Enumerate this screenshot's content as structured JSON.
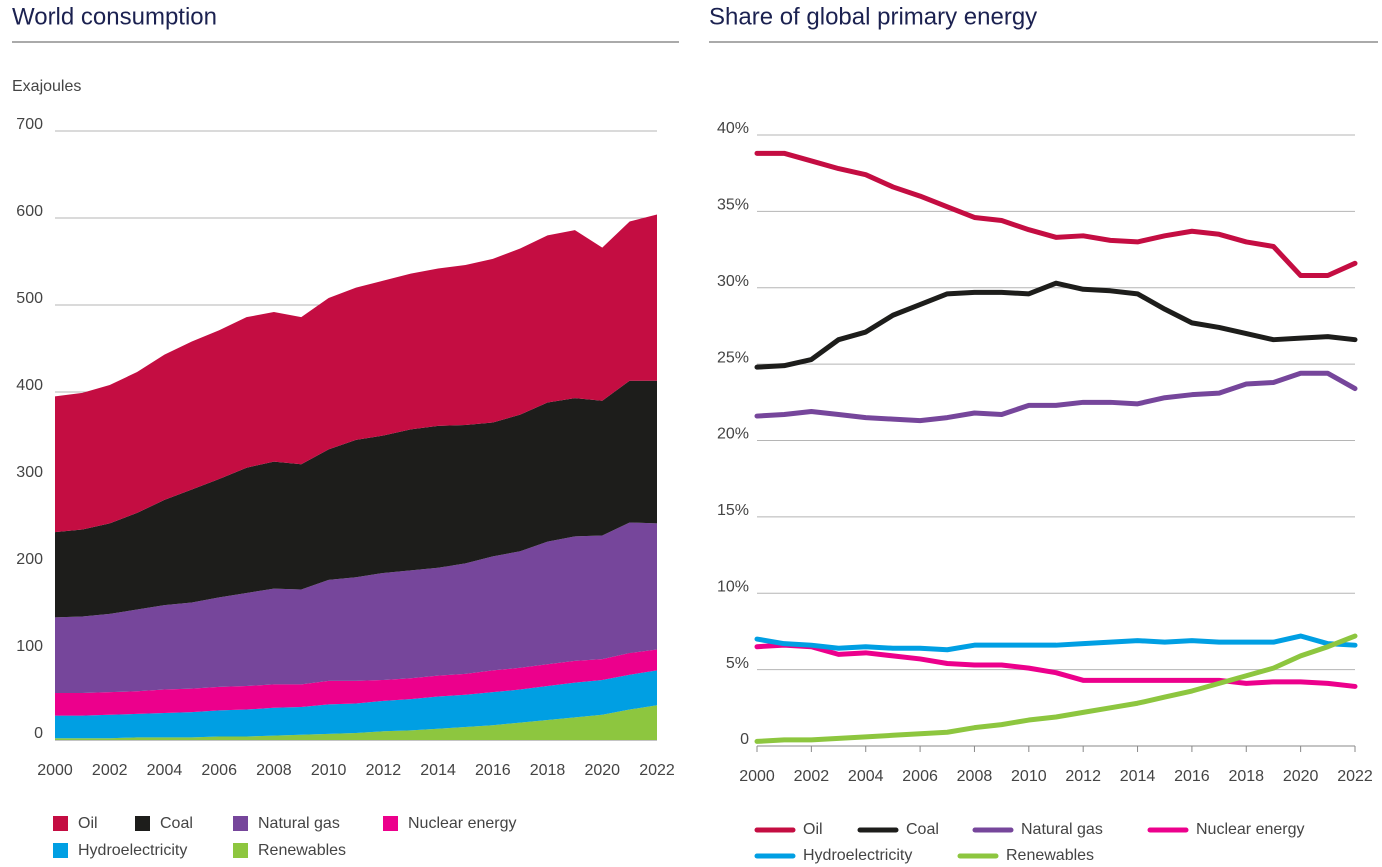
{
  "chart_data": [
    {
      "type": "area",
      "stacked": true,
      "title": "World consumption",
      "y_label": "Exajoules",
      "x": [
        2000,
        2001,
        2002,
        2003,
        2004,
        2005,
        2006,
        2007,
        2008,
        2009,
        2010,
        2011,
        2012,
        2013,
        2014,
        2015,
        2016,
        2017,
        2018,
        2019,
        2020,
        2021,
        2022
      ],
      "xlim": [
        2000,
        2022
      ],
      "xticks": [
        2000,
        2002,
        2004,
        2006,
        2008,
        2010,
        2012,
        2014,
        2016,
        2018,
        2020,
        2022
      ],
      "ylim": [
        0,
        700
      ],
      "yticks": [
        0,
        100,
        200,
        300,
        400,
        500,
        600,
        700
      ],
      "grid": true,
      "legend": "bottom",
      "series": [
        {
          "name": "Oil",
          "color": "#c40d42",
          "values": [
            156,
            157,
            159,
            162,
            167,
            170,
            171,
            173,
            172,
            169,
            174,
            175,
            178,
            179,
            181,
            184,
            188,
            191,
            192,
            193,
            176,
            183,
            191
          ]
        },
        {
          "name": "Coal",
          "color": "#1d1d1b",
          "values": [
            98,
            100,
            104,
            111,
            121,
            130,
            136,
            144,
            146,
            144,
            150,
            158,
            158,
            162,
            163,
            159,
            154,
            157,
            160,
            159,
            155,
            163,
            164
          ]
        },
        {
          "name": "Natural gas",
          "color": "#76469b",
          "values": [
            87,
            88,
            90,
            94,
            97,
            99,
            103,
            107,
            110,
            109,
            116,
            119,
            123,
            124,
            124,
            127,
            131,
            134,
            141,
            143,
            142,
            150,
            145
          ]
        },
        {
          "name": "Nuclear energy",
          "color": "#ec008c",
          "values": [
            26,
            26,
            26,
            26,
            27,
            27,
            27,
            27,
            27,
            26,
            27,
            26,
            24,
            24,
            24,
            24,
            25,
            25,
            25,
            25,
            24,
            25,
            24
          ]
        },
        {
          "name": "Hydroelectricity",
          "color": "#009fe3",
          "values": [
            26,
            26,
            27,
            27,
            28,
            29,
            30,
            31,
            32,
            32,
            34,
            34,
            35,
            36,
            37,
            37,
            38,
            38,
            39,
            40,
            40,
            40,
            40
          ]
        },
        {
          "name": "Renewables",
          "color": "#8dc63f",
          "values": [
            2,
            2,
            2,
            3,
            3,
            3,
            4,
            4,
            5,
            6,
            7,
            8,
            10,
            11,
            13,
            15,
            17,
            20,
            23,
            26,
            29,
            35,
            40
          ]
        }
      ]
    },
    {
      "type": "line",
      "title": "Share of global primary energy",
      "x": [
        2000,
        2001,
        2002,
        2003,
        2004,
        2005,
        2006,
        2007,
        2008,
        2009,
        2010,
        2011,
        2012,
        2013,
        2014,
        2015,
        2016,
        2017,
        2018,
        2019,
        2020,
        2021,
        2022
      ],
      "xlim": [
        2000,
        2022
      ],
      "xticks": [
        2000,
        2002,
        2004,
        2006,
        2008,
        2010,
        2012,
        2014,
        2016,
        2018,
        2020,
        2022
      ],
      "ylim": [
        0,
        40
      ],
      "yticks": [
        0,
        {
          "value": 5,
          "label": "5%"
        },
        {
          "value": 10,
          "label": "10%"
        },
        {
          "value": 15,
          "label": "15%"
        },
        {
          "value": 20,
          "label": "20%"
        },
        {
          "value": 25,
          "label": "25%"
        },
        {
          "value": 30,
          "label": "30%"
        },
        {
          "value": 35,
          "label": "35%"
        },
        {
          "value": 40,
          "label": "40%"
        }
      ],
      "grid": true,
      "legend": "bottom",
      "series": [
        {
          "name": "Oil",
          "color": "#c40d42",
          "values": [
            38.8,
            38.8,
            38.3,
            37.8,
            37.4,
            36.6,
            36.0,
            35.3,
            34.6,
            34.4,
            33.8,
            33.3,
            33.4,
            33.1,
            33.0,
            33.4,
            33.7,
            33.5,
            33.0,
            32.7,
            30.8,
            30.8,
            31.6
          ]
        },
        {
          "name": "Coal",
          "color": "#1d1d1b",
          "values": [
            24.8,
            24.9,
            25.3,
            26.6,
            27.1,
            28.2,
            28.9,
            29.6,
            29.7,
            29.7,
            29.6,
            30.3,
            29.9,
            29.8,
            29.6,
            28.6,
            27.7,
            27.4,
            27.0,
            26.6,
            26.7,
            26.8,
            26.6
          ]
        },
        {
          "name": "Natural gas",
          "color": "#76469b",
          "values": [
            21.6,
            21.7,
            21.9,
            21.7,
            21.5,
            21.4,
            21.3,
            21.5,
            21.8,
            21.7,
            22.3,
            22.3,
            22.5,
            22.5,
            22.4,
            22.8,
            23.0,
            23.1,
            23.7,
            23.8,
            24.4,
            24.4,
            23.4
          ]
        },
        {
          "name": "Nuclear energy",
          "color": "#ec008c",
          "values": [
            6.5,
            6.6,
            6.5,
            6.0,
            6.1,
            5.9,
            5.7,
            5.4,
            5.3,
            5.3,
            5.1,
            4.8,
            4.3,
            4.3,
            4.3,
            4.3,
            4.3,
            4.3,
            4.1,
            4.2,
            4.2,
            4.1,
            3.9
          ]
        },
        {
          "name": "Hydroelectricity",
          "color": "#009fe3",
          "values": [
            7.0,
            6.7,
            6.6,
            6.4,
            6.5,
            6.4,
            6.4,
            6.3,
            6.6,
            6.6,
            6.6,
            6.6,
            6.7,
            6.8,
            6.9,
            6.8,
            6.9,
            6.8,
            6.8,
            6.8,
            7.2,
            6.7,
            6.6
          ]
        },
        {
          "name": "Renewables",
          "color": "#8dc63f",
          "values": [
            0.3,
            0.4,
            0.4,
            0.5,
            0.6,
            0.7,
            0.8,
            0.9,
            1.2,
            1.4,
            1.7,
            1.9,
            2.2,
            2.5,
            2.8,
            3.2,
            3.6,
            4.1,
            4.6,
            5.1,
            5.9,
            6.5,
            7.2
          ]
        }
      ]
    }
  ]
}
